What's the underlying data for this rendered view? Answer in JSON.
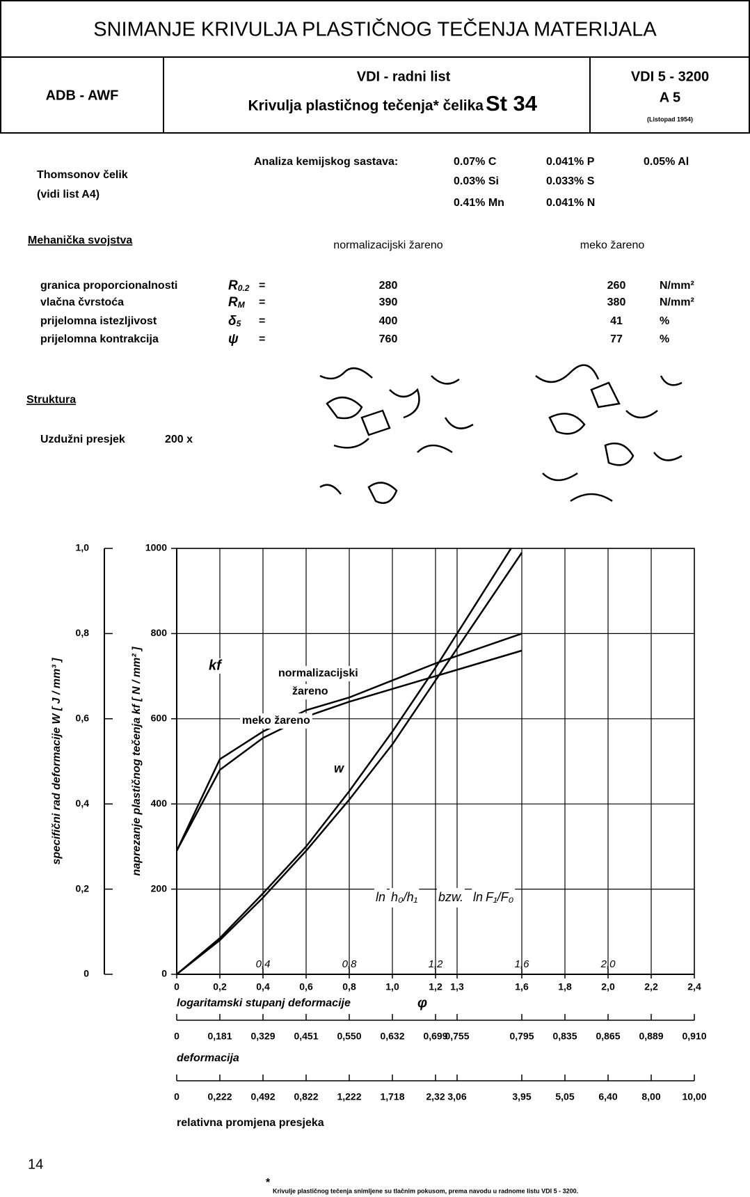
{
  "header": {
    "title": "SNIMANJE KRIVULJA PLASTIČNOG TEČENJA MATERIJALA",
    "left": "ADB - AWF",
    "center_top": "VDI - radni list",
    "center_bottom": "Krivulja plastičnog tečenja* čelika",
    "steel": "St 34",
    "right_top": "VDI 5 - 3200",
    "right_mid": "A 5",
    "right_bottom": "(Listopad 1954)"
  },
  "material": {
    "name": "Thomsonov čelik",
    "ref": "(vidi list A4)",
    "analysis_label": "Analiza kemijskog sastava:",
    "composition": [
      [
        "0.07% C",
        "0.041% P",
        "0.05% Al"
      ],
      [
        "0.03% Si",
        "0.033% S"
      ],
      [
        "0.41% Mn",
        "0.041% N"
      ]
    ]
  },
  "mechanical": {
    "title": "Mehanička svojstva",
    "col1": "normalizacijski žareno",
    "col2": "meko žareno",
    "rows": [
      {
        "label": "granica proporcionalnosti",
        "symbol": "R",
        "sub": "0.2",
        "eq": "=",
        "normal": 280,
        "soft": 260,
        "unit": "N/mm²"
      },
      {
        "label": "vlačna čvrstoća",
        "symbol": "R",
        "sub": "M",
        "eq": "=",
        "normal": 390,
        "soft": 380,
        "unit": "N/mm²"
      },
      {
        "label": "prijelomna istezljivost",
        "symbol": "δ",
        "sub": "5",
        "eq": "=",
        "normal": 400,
        "soft": 41,
        "unit": "%"
      },
      {
        "label": "prijelomna kontrakcija",
        "symbol": "ψ",
        "sub": "",
        "eq": "=",
        "normal": 760,
        "soft": 77,
        "unit": "%"
      }
    ]
  },
  "structure": {
    "title": "Struktura",
    "section": "Uzdužni presjek",
    "magnification": "200 x"
  },
  "chart_data": {
    "type": "line",
    "x": [
      0,
      0.2,
      0.4,
      0.6,
      0.8,
      1.0,
      1.2,
      1.4,
      1.6
    ],
    "xlim": [
      0,
      2.4
    ],
    "xticks": [
      0,
      {
        "value": 0.2,
        "label": "0,2"
      },
      {
        "value": 0.4,
        "label": "0,4"
      },
      {
        "value": 0.6,
        "label": "0,6"
      },
      {
        "value": 0.8,
        "label": "0,8"
      },
      {
        "value": 1.0,
        "label": "1,0"
      },
      {
        "value": 1.2,
        "label": "1,2"
      },
      {
        "value": 1.3,
        "label": "1,3"
      },
      {
        "value": 1.6,
        "label": "1,6"
      },
      {
        "value": 1.8,
        "label": "1,8"
      },
      {
        "value": 2.0,
        "label": "2,0"
      },
      {
        "value": 2.2,
        "label": "2,2"
      },
      {
        "value": 2.4,
        "label": "2,4"
      }
    ],
    "ylim": [
      0,
      1000
    ],
    "yticks": [
      0,
      200,
      400,
      600,
      800,
      1000
    ],
    "y2lim": [
      0,
      1
    ],
    "y2ticks": [
      0,
      {
        "value": 0.2,
        "label": "0,2"
      },
      {
        "value": 0.4,
        "label": "0,4"
      },
      {
        "value": 0.6,
        "label": "0,6"
      },
      {
        "value": 0.8,
        "label": "0,8"
      },
      {
        "value": 1.0,
        "label": "1,0"
      }
    ],
    "grid": true,
    "xlabel": "logaritamski stupanj deformacije",
    "xlabel_symbol": "φ",
    "ylabel": "naprezanje plastičnog tečenja  kf  [ N / mm² ]",
    "y2label": "specifični rad deformacije   W   [ J / mm³ ]",
    "series": [
      {
        "color": "#000000",
        "values": [
          290,
          505,
          570,
          620,
          650,
          690,
          730,
          765,
          800
        ]
      },
      {
        "color": "#000000",
        "values": [
          290,
          480,
          555,
          605,
          640,
          670,
          700,
          730,
          760
        ]
      },
      {
        "color": "#000000",
        "axis": "y2",
        "values": [
          0,
          0.085,
          0.19,
          0.3,
          0.43,
          0.57,
          0.72,
          0.88,
          1.04
        ]
      },
      {
        "color": "#000000",
        "axis": "y2",
        "values": [
          0,
          0.08,
          0.18,
          0.29,
          0.41,
          0.54,
          0.69,
          0.84,
          0.99
        ]
      }
    ],
    "annotations": [
      "kf",
      "normalizacijski",
      "žareno",
      "meko žareno",
      "w"
    ],
    "formula": [
      "ln",
      "h₀/h₁",
      "bzw.",
      "ln",
      "F₁/F₀"
    ],
    "inner_ticks": [
      {
        "value": 0.4,
        "label": "0,4"
      },
      {
        "value": 0.8,
        "label": "0,8"
      },
      {
        "value": 1.2,
        "label": "1,2"
      },
      {
        "value": 1.6,
        "label": "1,6"
      },
      {
        "value": 2.0,
        "label": "2,0"
      }
    ],
    "scales": [
      {
        "title": "deformacija",
        "labels": [
          "0",
          "0,181",
          "0,329",
          "0,451",
          "0,550",
          "0,632",
          "0,699",
          "0,755",
          "0,795",
          "0,835",
          "0,865",
          "0,889",
          "0,910"
        ]
      },
      {
        "title": "relativna promjena presjeka",
        "labels": [
          "0",
          "0,222",
          "0,492",
          "0,822",
          "1,222",
          "1,718",
          "2,32",
          "3,06",
          "3,95",
          "5,05",
          "6,40",
          "8,00",
          "10,00"
        ]
      }
    ]
  },
  "page_number": 14,
  "footnote_mark": "*",
  "footnote": "Krivulje plastičnog tečenja snimljene su tlačnim pokusom, prema navodu u radnome listu VDI 5 - 3200."
}
